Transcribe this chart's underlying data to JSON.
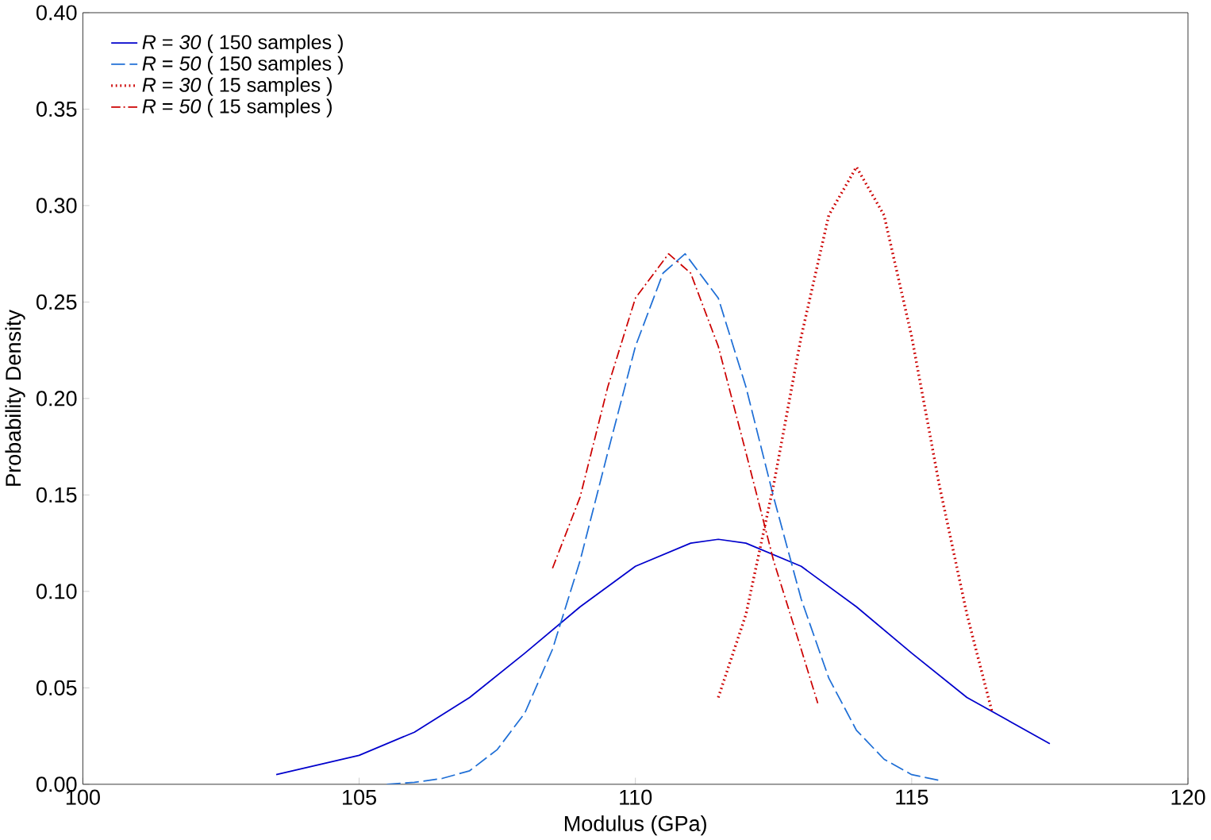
{
  "chart_data": {
    "type": "line",
    "xlabel": "Modulus (GPa)",
    "ylabel": "Probability Density",
    "xlim": [
      100,
      120
    ],
    "ylim": [
      0,
      0.4
    ],
    "xticks": [
      100,
      105,
      110,
      115,
      120
    ],
    "yticks": [
      {
        "value": 0,
        "label": "0.00"
      },
      {
        "value": 0.05,
        "label": "0.05"
      },
      {
        "value": 0.1,
        "label": "0.10"
      },
      {
        "value": 0.15,
        "label": "0.15"
      },
      {
        "value": 0.2,
        "label": "0.20"
      },
      {
        "value": 0.25,
        "label": "0.25"
      },
      {
        "value": 0.3,
        "label": "0.30"
      },
      {
        "value": 0.35,
        "label": "0.35"
      },
      {
        "value": 0.4,
        "label": "0.40"
      }
    ],
    "grid": false,
    "legend": "top left",
    "marker": "none",
    "series": [
      {
        "name": "*R* = *30* ( 150 samples )",
        "color": "#0000cc",
        "line_style": "solid",
        "x": [
          103.5,
          105,
          106,
          107,
          108,
          109,
          110,
          111,
          111.5,
          112,
          113,
          114,
          115,
          116,
          117.5
        ],
        "values": [
          0.005,
          0.015,
          0.027,
          0.045,
          0.068,
          0.092,
          0.113,
          0.125,
          0.127,
          0.125,
          0.113,
          0.092,
          0.068,
          0.045,
          0.021
        ]
      },
      {
        "name": "*R* = *50* ( 150 samples )",
        "color": "#1f6fd6",
        "line_style": "dashed",
        "x": [
          105.5,
          106,
          106.5,
          107,
          107.5,
          108,
          108.5,
          109,
          109.5,
          110,
          110.5,
          110.9,
          111.5,
          112,
          112.5,
          113,
          113.5,
          114,
          114.5,
          115,
          115.5
        ],
        "values": [
          0,
          0.001,
          0.003,
          0.007,
          0.018,
          0.037,
          0.07,
          0.116,
          0.172,
          0.227,
          0.265,
          0.275,
          0.252,
          0.206,
          0.149,
          0.096,
          0.055,
          0.028,
          0.013,
          0.005,
          0.002
        ]
      },
      {
        "name": "*R* = *30* ( 15 samples )",
        "color": "#cc0000",
        "line_style": "dotted",
        "x": [
          111.5,
          112,
          112.5,
          113,
          113.5,
          114,
          114.5,
          115,
          115.5,
          116,
          116.45
        ],
        "values": [
          0.045,
          0.088,
          0.155,
          0.232,
          0.295,
          0.32,
          0.295,
          0.232,
          0.155,
          0.088,
          0.038
        ]
      },
      {
        "name": "*R* = *50* ( 15 samples )",
        "color": "#cc0000",
        "line_style": "dashdot",
        "x": [
          108.5,
          109,
          109.5,
          110,
          110.6,
          111,
          111.5,
          112,
          112.5,
          113,
          113.3
        ],
        "values": [
          0.112,
          0.149,
          0.206,
          0.252,
          0.275,
          0.265,
          0.227,
          0.172,
          0.116,
          0.07,
          0.042
        ]
      }
    ]
  }
}
